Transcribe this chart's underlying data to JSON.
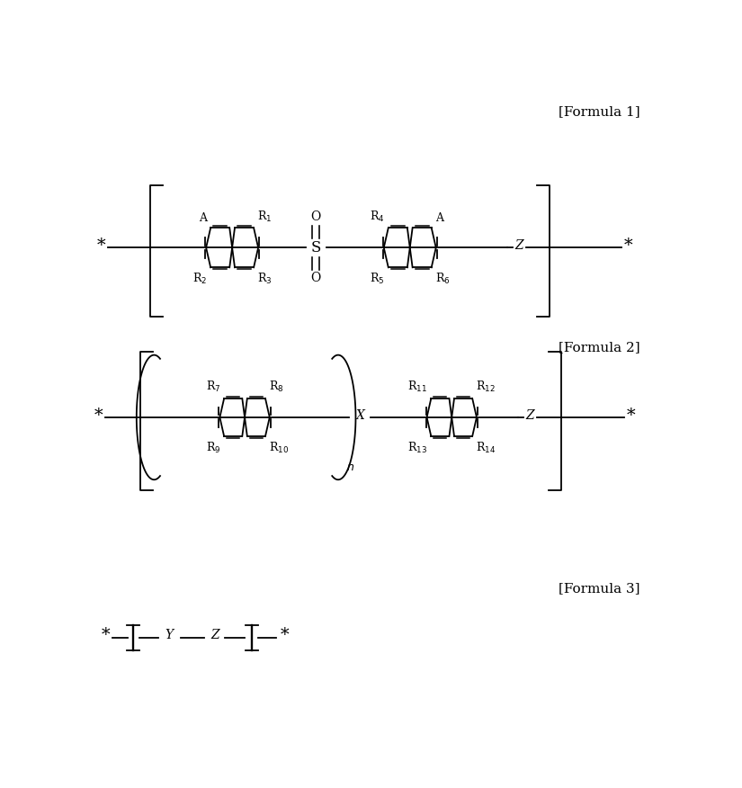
{
  "bg_color": "#ffffff",
  "text_color": "#000000",
  "formula1_label": "[Formula 1]",
  "formula2_label": "[Formula 2]",
  "formula3_label": "[Formula 3]",
  "figsize": [
    8.25,
    8.76
  ],
  "dpi": 100,
  "lw": 1.3,
  "fs_label": 9,
  "fs_formula": 11
}
